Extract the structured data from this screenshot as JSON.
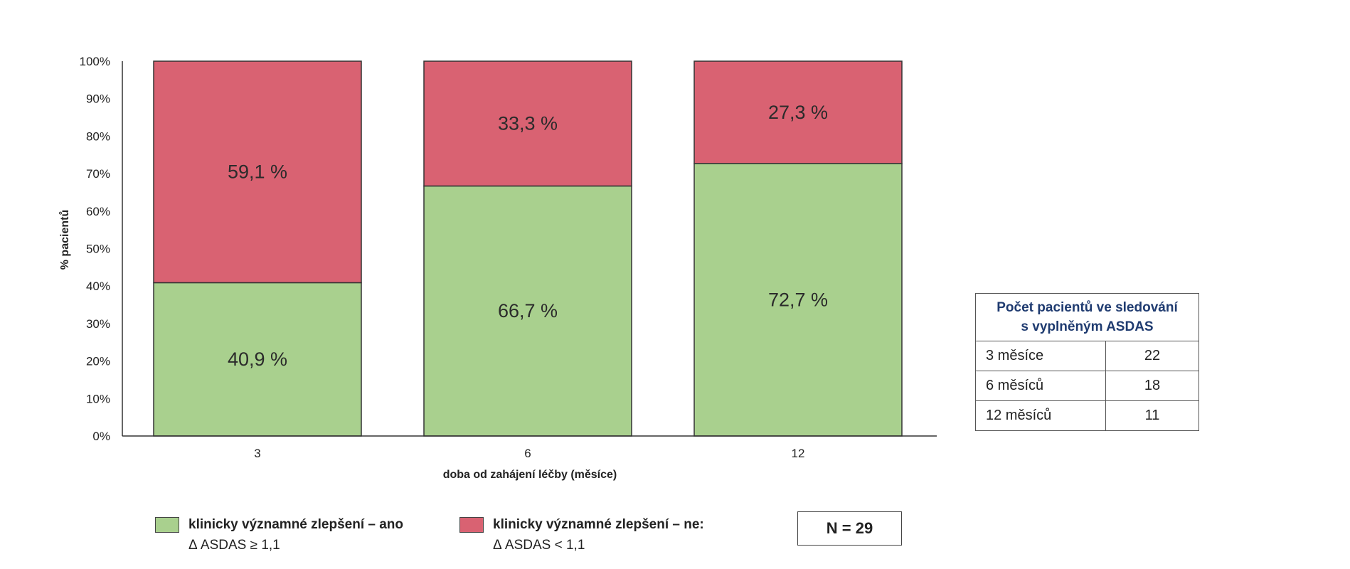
{
  "chart_data": {
    "type": "bar",
    "stacked": true,
    "categories": [
      "3",
      "6",
      "12"
    ],
    "series": [
      {
        "name": "klinicky významné zlepšení – ano",
        "values": [
          40.9,
          66.7,
          72.7
        ],
        "labels": [
          "40,9 %",
          "66,7 %",
          "72,7 %"
        ],
        "color": "#a9d08e"
      },
      {
        "name": "klinicky významné zlepšení – ne:",
        "values": [
          59.1,
          33.3,
          27.3
        ],
        "labels": [
          "59,1 %",
          "33,3 %",
          "27,3 %"
        ],
        "color": "#d96272"
      }
    ],
    "yticks": [
      "0%",
      "10%",
      "20%",
      "30%",
      "40%",
      "50%",
      "60%",
      "70%",
      "80%",
      "90%",
      "100%"
    ],
    "ylim": [
      0,
      100
    ],
    "xlabel": "doba od zahájení léčby (měsíce)",
    "ylabel": "% pacientů",
    "grid": false,
    "legend_position": "bottom"
  },
  "legend": {
    "yes": {
      "line1": "klinicky významné zlepšení – ano",
      "line2": "Δ ASDAS ≥ 1,1",
      "color": "#a9d08e"
    },
    "no": {
      "line1": "klinicky významné zlepšení – ne:",
      "line2": "Δ ASDAS < 1,1",
      "color": "#d96272"
    }
  },
  "n_box": "N = 29",
  "table": {
    "header_line1": "Počet pacientů ve sledování",
    "header_line2": "s vyplněným ASDAS",
    "rows": [
      {
        "label": "3 měsíce",
        "value": "22"
      },
      {
        "label": "6 měsíců",
        "value": "18"
      },
      {
        "label": "12 měsíců",
        "value": "11"
      }
    ]
  }
}
